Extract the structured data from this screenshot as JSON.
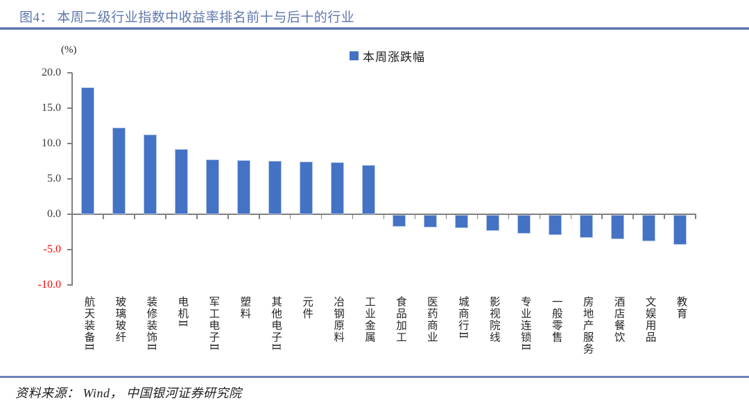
{
  "header": {
    "title": "图4： 本周二级行业指数中收益率排名前十与后十的行业"
  },
  "footer": {
    "source": "资料来源： Wind， 中国银河证券研究院"
  },
  "chart_data": {
    "type": "bar",
    "title": "",
    "unit_label": "(%)",
    "legend": [
      {
        "label": "本周涨跌幅",
        "color": "#4472C4"
      }
    ],
    "legend_position": "top-center",
    "categories": [
      "航天装备Ⅱ",
      "玻璃玻纤",
      "装修装饰Ⅱ",
      "电机Ⅱ",
      "军工电子Ⅱ",
      "塑料",
      "其他电子Ⅱ",
      "元件",
      "冶钢原料",
      "工业金属",
      "食品加工",
      "医药商业",
      "城商行Ⅱ",
      "影视院线",
      "专业连锁Ⅱ",
      "一般零售",
      "房地产服务",
      "酒店餐饮",
      "文娱用品",
      "教育"
    ],
    "values": [
      17.9,
      12.2,
      11.3,
      9.2,
      7.7,
      7.6,
      7.5,
      7.4,
      7.3,
      7.0,
      -1.7,
      -1.8,
      -1.9,
      -2.3,
      -2.6,
      -2.8,
      -3.2,
      -3.4,
      -3.7,
      -4.2
    ],
    "ylim": [
      -10,
      20
    ],
    "yticks": [
      20,
      15,
      10,
      5,
      0,
      -5,
      -10
    ],
    "ytick_labels": [
      "20.0",
      "15.0",
      "10.0",
      "5.0",
      "0.0",
      "-5.0",
      "-10.0"
    ],
    "grid": false,
    "bar_color": "#4472C4",
    "bar_border_color": "#B5C7E9",
    "axis_color": "#808080",
    "negative_tick_color": "#FF0000"
  }
}
